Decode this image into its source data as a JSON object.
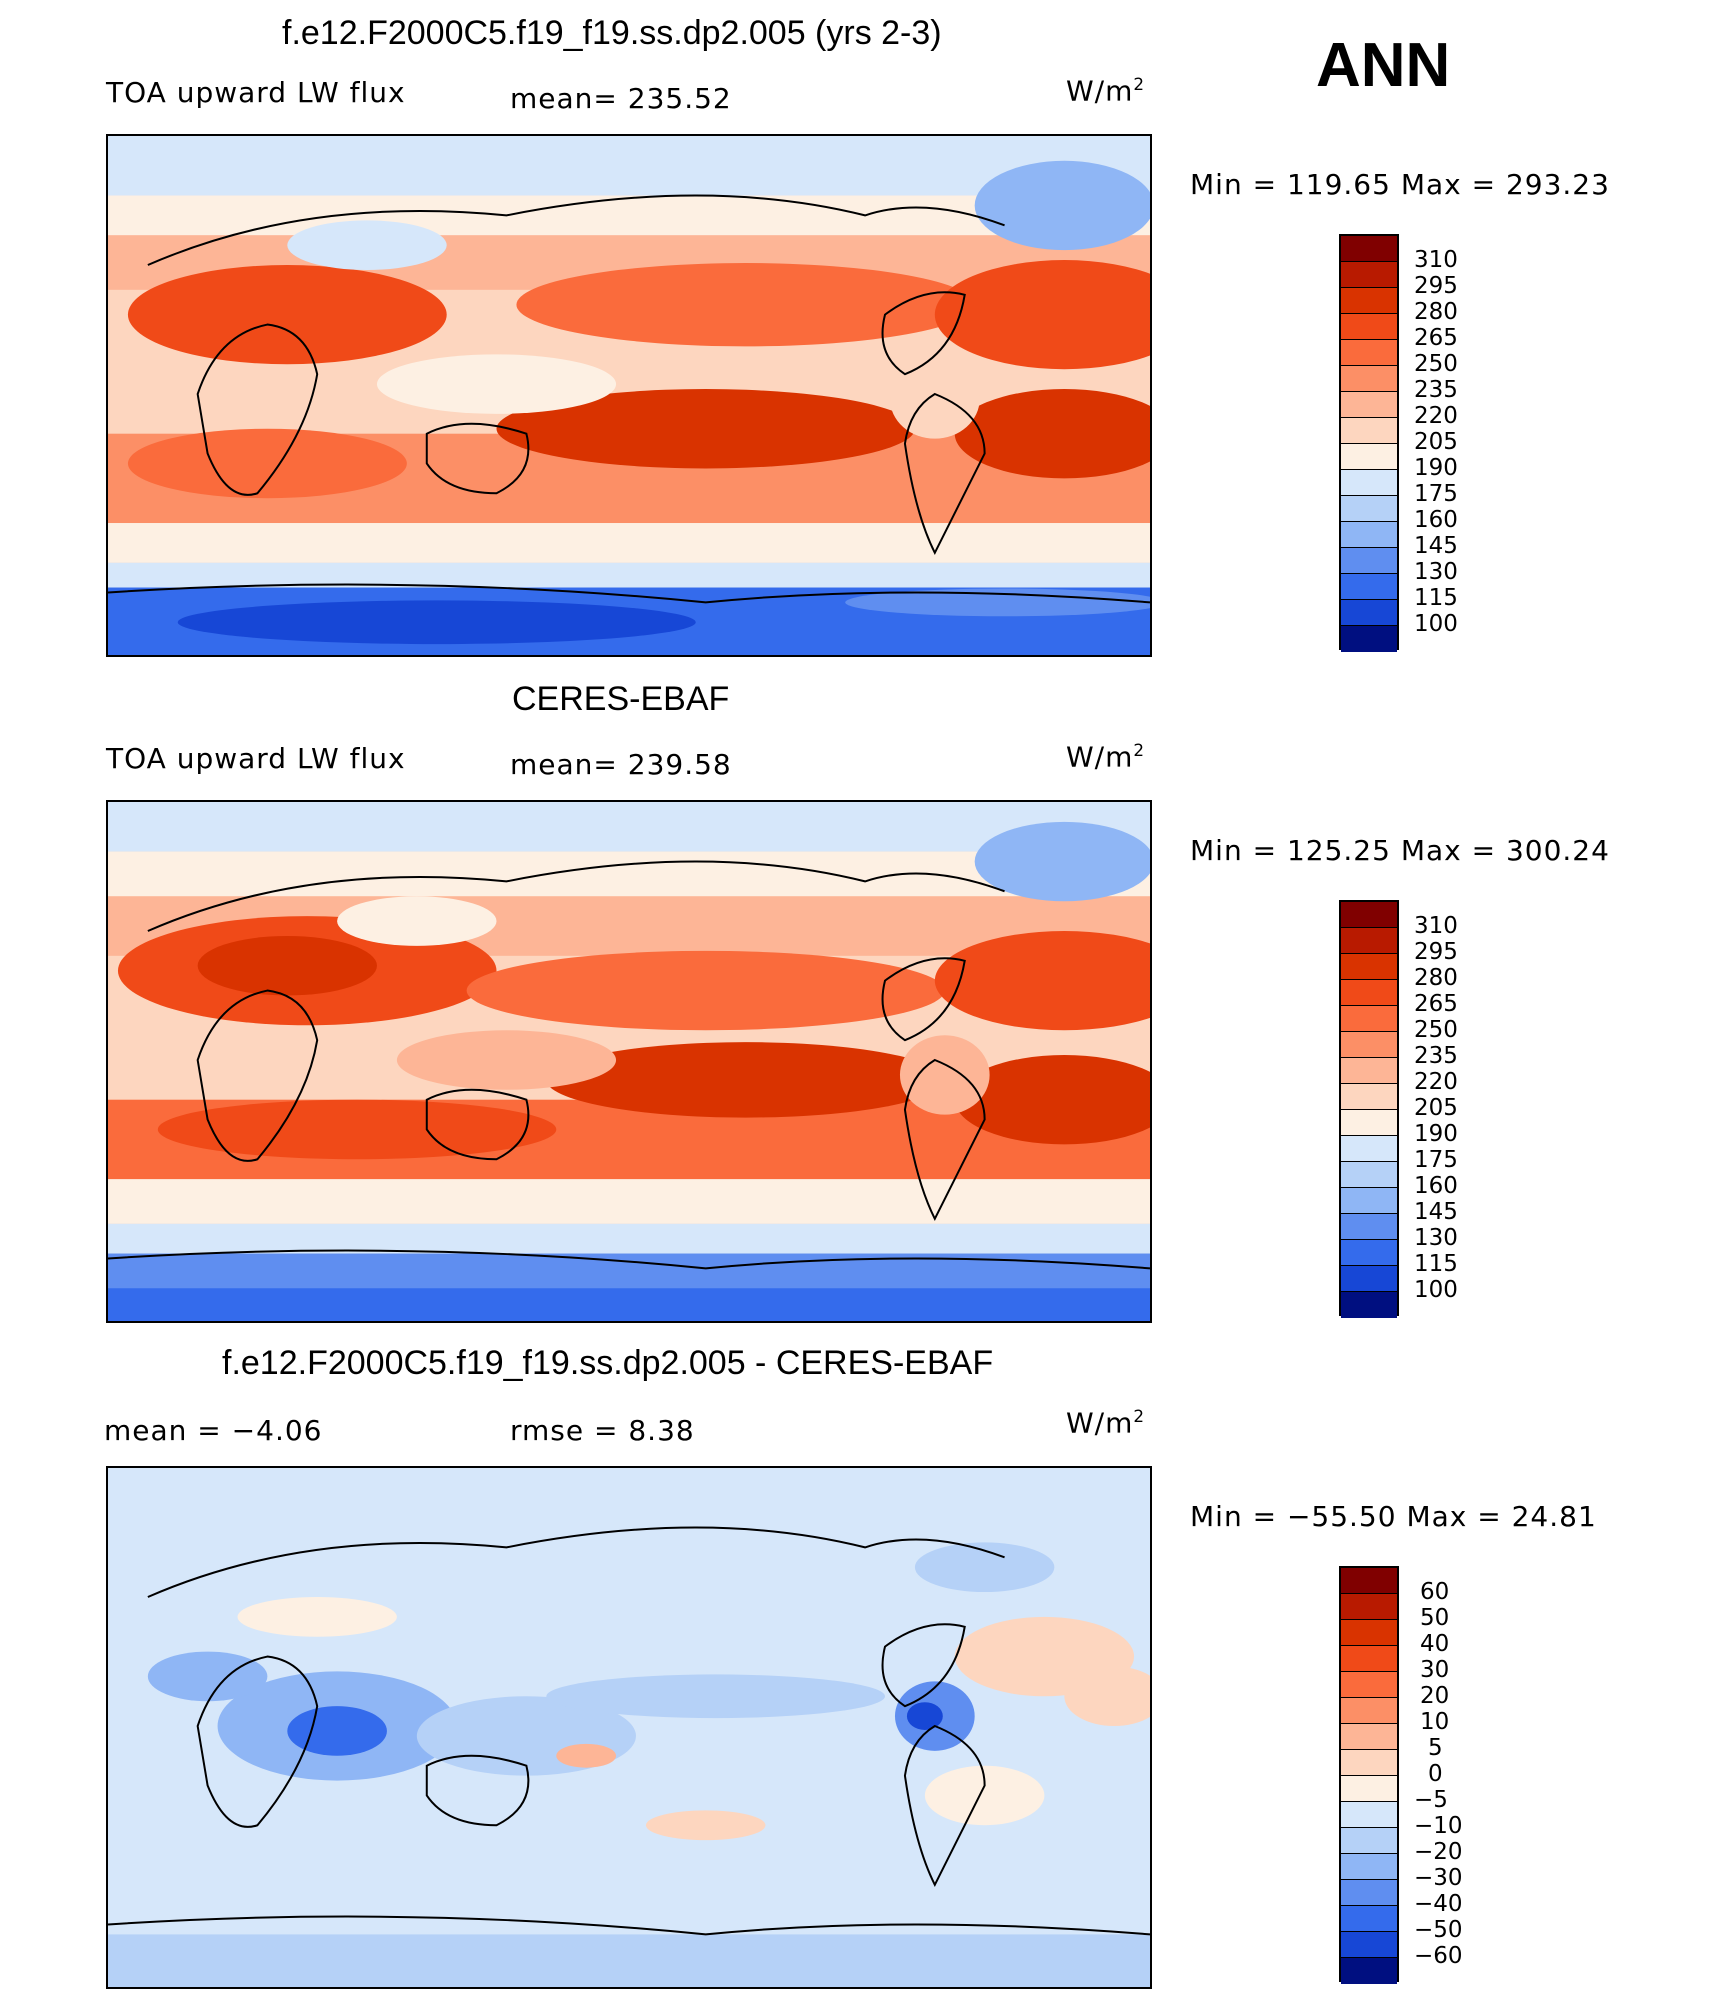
{
  "season": "ANN",
  "panels": [
    {
      "title": "f.e12.F2000C5.f19_f19.ss.dp2.005 (yrs 2-3)",
      "left_label": "TOA upward LW flux",
      "stat1": "mean= 235.52",
      "stat2": "",
      "units_base": "W/m",
      "units_sup": "2",
      "minmax": "Min = 119.65 Max = 293.23",
      "levels": [
        "310",
        "295",
        "280",
        "265",
        "250",
        "235",
        "220",
        "205",
        "190",
        "175",
        "160",
        "145",
        "130",
        "115",
        "100"
      ],
      "colors": [
        "#800000",
        "#b81a00",
        "#d93300",
        "#f04a18",
        "#fa6b3c",
        "#fc8f66",
        "#fdb596",
        "#fdd6bf",
        "#fdf0e3",
        "#d6e7fa",
        "#b5d1f7",
        "#8fb6f5",
        "#5f8ef0",
        "#346bec",
        "#1747d6",
        "#0a24a8",
        "#000f80"
      ],
      "map_tone": "warm"
    },
    {
      "title": "CERES-EBAF",
      "left_label": "TOA upward LW flux",
      "stat1": "mean= 239.58",
      "stat2": "",
      "units_base": "W/m",
      "units_sup": "2",
      "minmax": "Min = 125.25 Max = 300.24",
      "levels": [
        "310",
        "295",
        "280",
        "265",
        "250",
        "235",
        "220",
        "205",
        "190",
        "175",
        "160",
        "145",
        "130",
        "115",
        "100"
      ],
      "colors": [
        "#800000",
        "#b81a00",
        "#d93300",
        "#f04a18",
        "#fa6b3c",
        "#fc8f66",
        "#fdb596",
        "#fdd6bf",
        "#fdf0e3",
        "#d6e7fa",
        "#b5d1f7",
        "#8fb6f5",
        "#5f8ef0",
        "#346bec",
        "#1747d6",
        "#0a24a8",
        "#000f80"
      ],
      "map_tone": "warm"
    },
    {
      "title": "f.e12.F2000C5.f19_f19.ss.dp2.005 - CERES-EBAF",
      "left_label": "mean =    −4.06",
      "stat1": "rmse =    8.38",
      "stat2": "",
      "units_base": "W/m",
      "units_sup": "2",
      "minmax": "Min = −55.50 Max =   24.81",
      "levels": [
        "60",
        "50",
        "40",
        "30",
        "20",
        "10",
        "5",
        "0",
        "−5",
        "−10",
        "−20",
        "−30",
        "−40",
        "−50",
        "−60"
      ],
      "colors": [
        "#800000",
        "#b81a00",
        "#d93300",
        "#f04a18",
        "#fa6b3c",
        "#fc8f66",
        "#fdb596",
        "#fdd6bf",
        "#fdf0e3",
        "#d6e7fa",
        "#b5d1f7",
        "#8fb6f5",
        "#5f8ef0",
        "#346bec",
        "#1747d6",
        "#0a24a8",
        "#000f80"
      ],
      "map_tone": "diff"
    }
  ]
}
